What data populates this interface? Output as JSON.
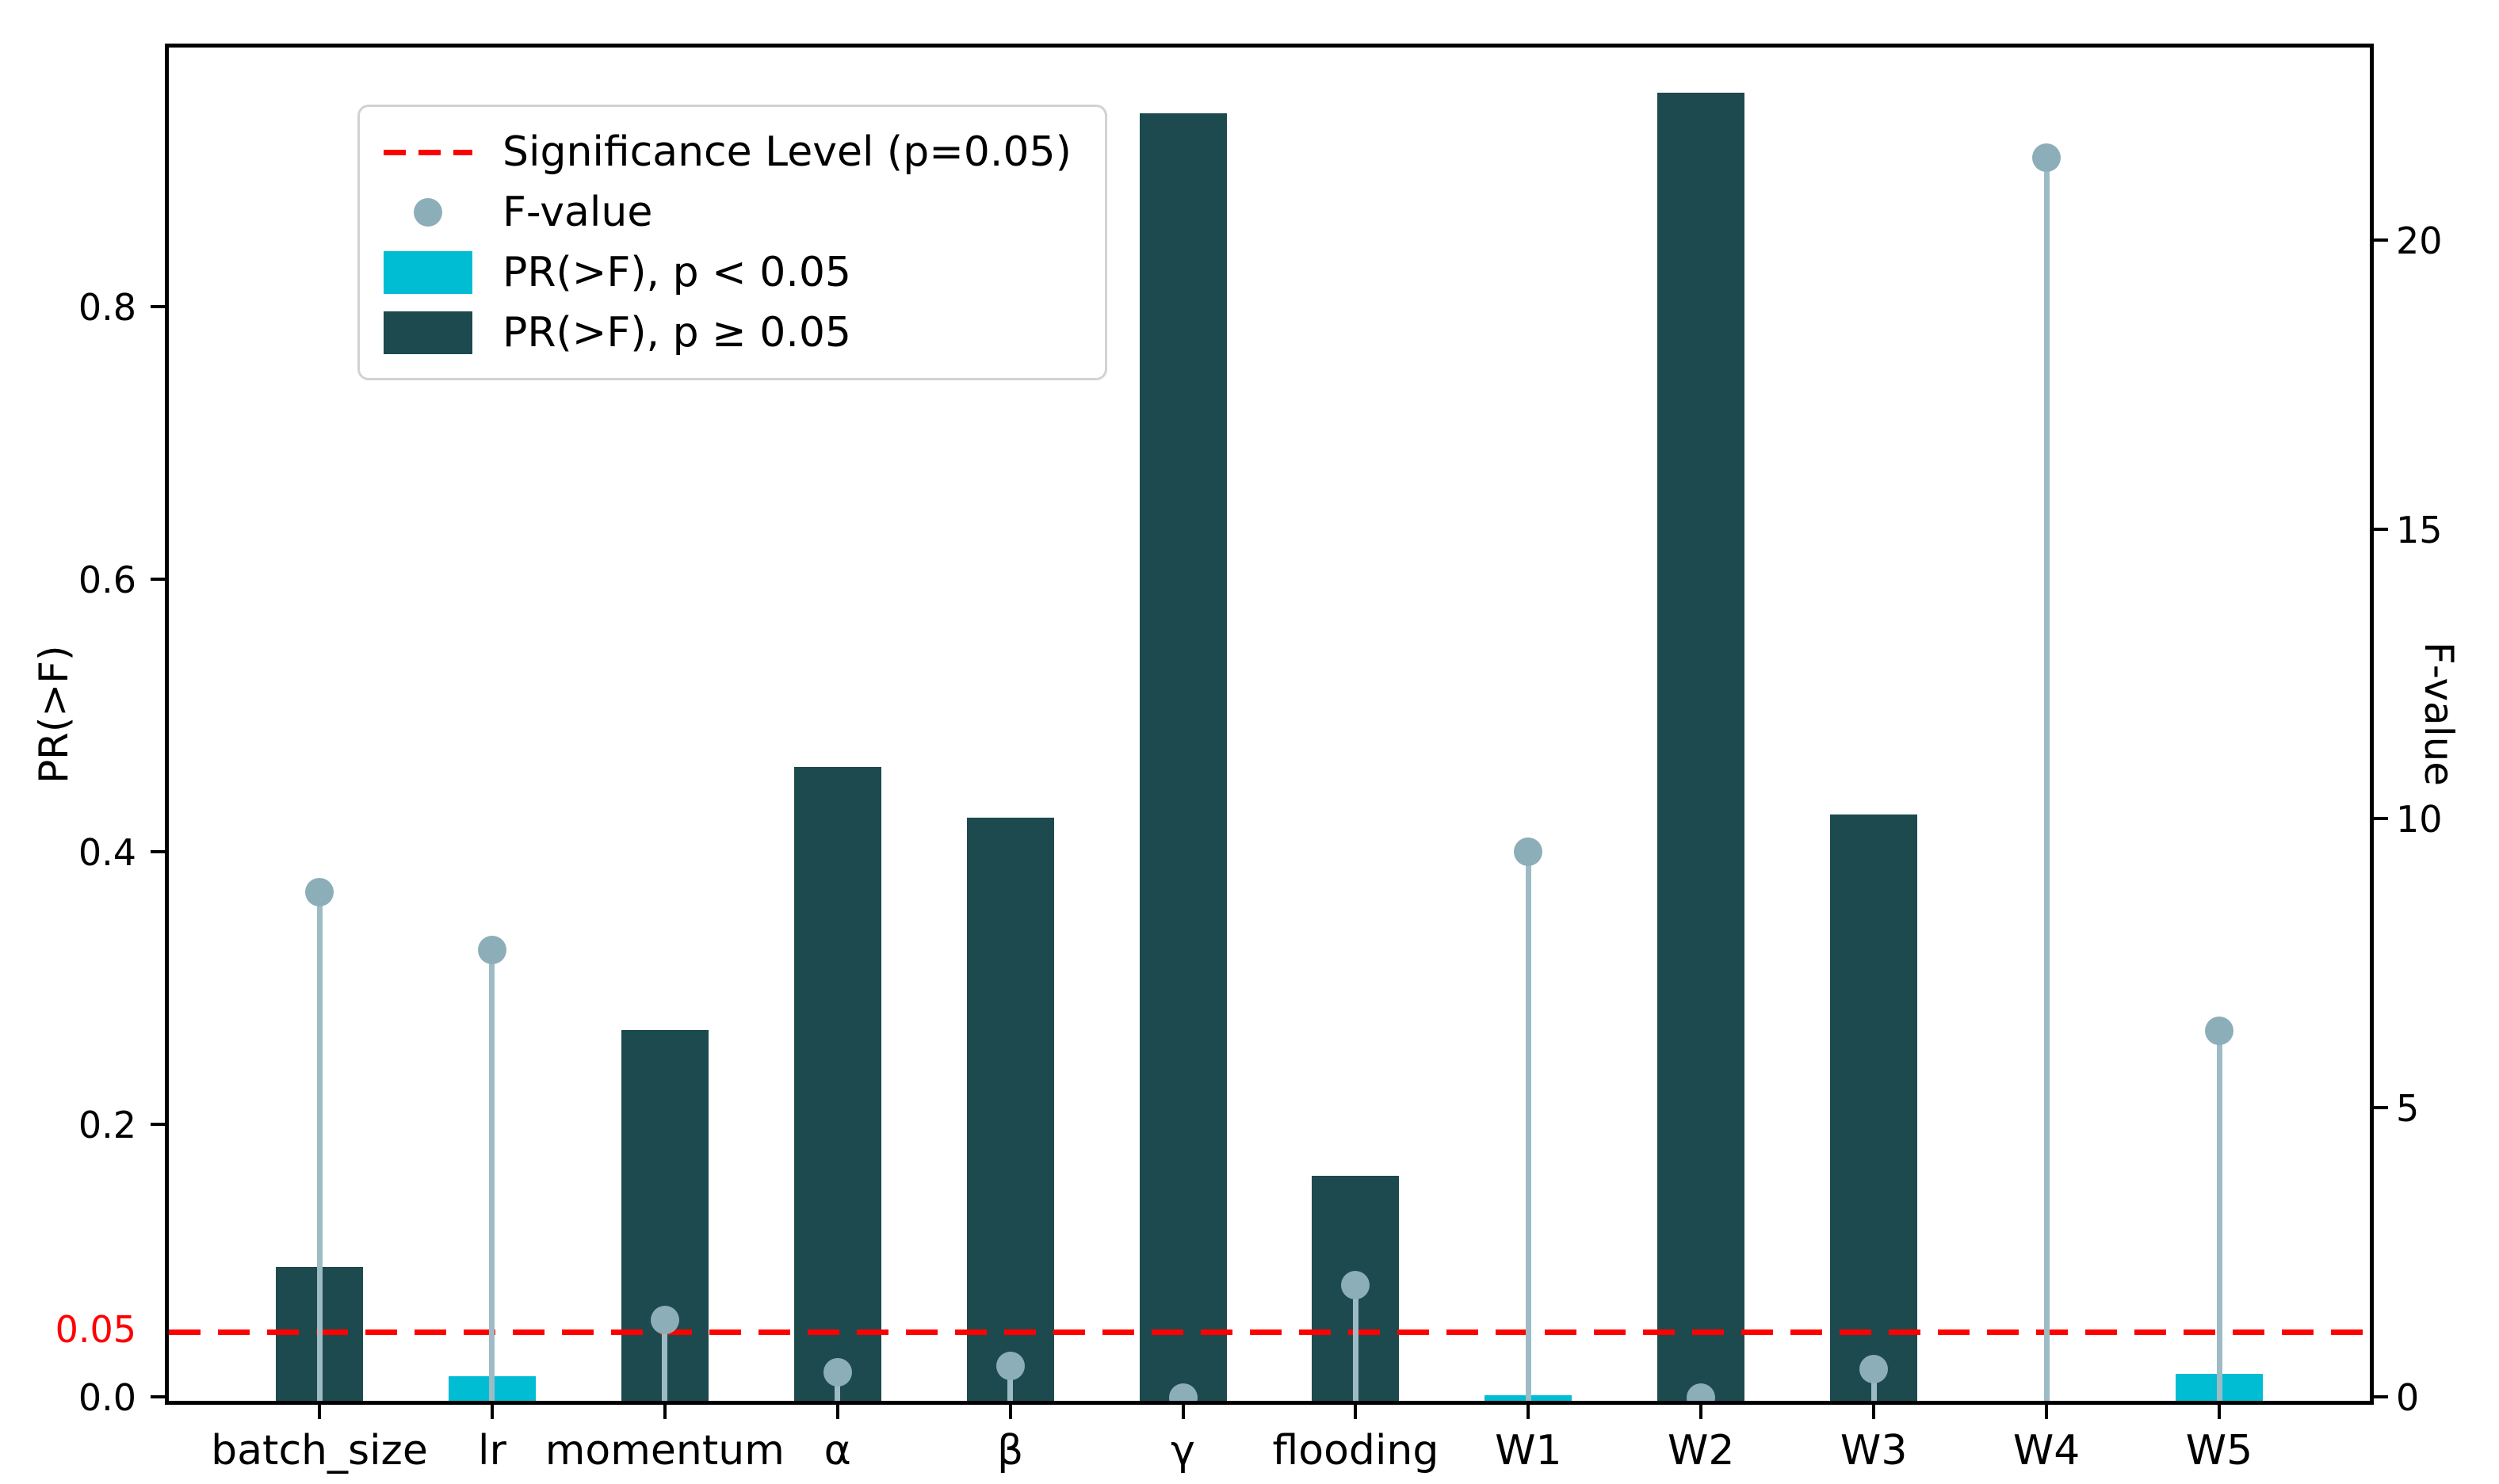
{
  "chart_data": {
    "type": "bar",
    "title": "",
    "categories": [
      "batch_size",
      "lr",
      "momentum",
      "α",
      "β",
      "γ",
      "flooding",
      "W1",
      "W2",
      "W3",
      "W4",
      "W5"
    ],
    "series": [
      {
        "name": "PR(>F)",
        "axis": "left",
        "type": "bar",
        "values": [
          0.098,
          0.018,
          0.272,
          0.465,
          0.428,
          0.945,
          0.165,
          0.004,
          0.96,
          0.43,
          0.0,
          0.02
        ],
        "significant": [
          false,
          true,
          false,
          false,
          false,
          false,
          false,
          true,
          false,
          false,
          true,
          true
        ]
      },
      {
        "name": "F-value",
        "axis": "right",
        "type": "stem",
        "values": [
          8.8,
          7.8,
          1.4,
          0.5,
          0.6,
          0.05,
          2.0,
          9.5,
          0.05,
          0.55,
          21.5,
          6.4
        ]
      }
    ],
    "significance_line": {
      "label": "Significance Level (p=0.05)",
      "value": 0.05,
      "color": "#ff0000"
    },
    "left_axis": {
      "label": "PR(>F)",
      "ticks": [
        "0.0",
        "0.2",
        "0.4",
        "0.6",
        "0.8"
      ],
      "tick_values": [
        0,
        0.2,
        0.4,
        0.6,
        0.8
      ],
      "special_tick": {
        "label": "0.05",
        "value": 0.05,
        "color": "#ff0000"
      },
      "min": 0,
      "max": 0.993
    },
    "right_axis": {
      "label": "F-value",
      "ticks": [
        "0",
        "5",
        "10",
        "15",
        "20"
      ],
      "tick_values": [
        0,
        5,
        10,
        15,
        20
      ],
      "min": 0,
      "max": 23.4
    },
    "legend": [
      {
        "label": "Significance Level (p=0.05)",
        "marker": "dashed-line",
        "color": "#ff0000"
      },
      {
        "label": "F-value",
        "marker": "dot",
        "color": "#8caeb9"
      },
      {
        "label": "PR(>F), p < 0.05",
        "marker": "patch",
        "color": "#00bdd4"
      },
      {
        "label": "PR(>F), p ≥ 0.05",
        "marker": "patch",
        "color": "#1d4a4e"
      }
    ],
    "legend_position": "upper left",
    "grid": false,
    "colors": {
      "bar_significant": "#00bdd4",
      "bar_not_significant": "#1d4a4e",
      "stem": "#9dbbc5",
      "dot": "#8caeb9",
      "significance": "#ff0000",
      "axis": "#000000"
    }
  }
}
